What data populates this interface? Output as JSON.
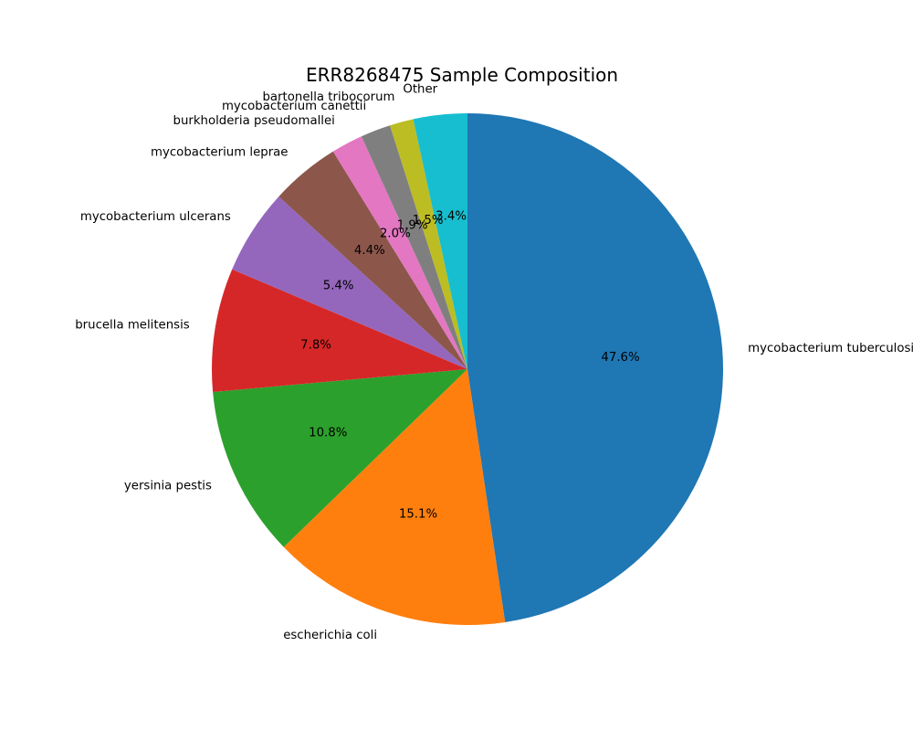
{
  "chart_data": {
    "type": "pie",
    "title": "ERR8268475 Sample Composition",
    "start_angle_deg": 90,
    "direction": "clockwise",
    "legend": "none",
    "slices": [
      {
        "label": "mycobacterium tuberculosis",
        "value": 47.6,
        "pct_label": "47.6%",
        "color": "#1f77b4"
      },
      {
        "label": "escherichia coli",
        "value": 15.1,
        "pct_label": "15.1%",
        "color": "#ff7f0e"
      },
      {
        "label": "yersinia pestis",
        "value": 10.8,
        "pct_label": "10.8%",
        "color": "#2ca02c"
      },
      {
        "label": "brucella melitensis",
        "value": 7.8,
        "pct_label": "7.8%",
        "color": "#d62728"
      },
      {
        "label": "mycobacterium ulcerans",
        "value": 5.4,
        "pct_label": "5.4%",
        "color": "#9467bd"
      },
      {
        "label": "mycobacterium leprae",
        "value": 4.4,
        "pct_label": "4.4%",
        "color": "#8c564b"
      },
      {
        "label": "burkholderia pseudomallei",
        "value": 2.0,
        "pct_label": "2.0%",
        "color": "#e377c2"
      },
      {
        "label": "mycobacterium canettii",
        "value": 1.9,
        "pct_label": "1.9%",
        "color": "#7f7f7f"
      },
      {
        "label": "bartonella tribocorum",
        "value": 1.5,
        "pct_label": "1.5%",
        "color": "#bcbd22"
      },
      {
        "label": "Other",
        "value": 3.4,
        "pct_label": "3.4%",
        "color": "#17becf"
      }
    ]
  }
}
